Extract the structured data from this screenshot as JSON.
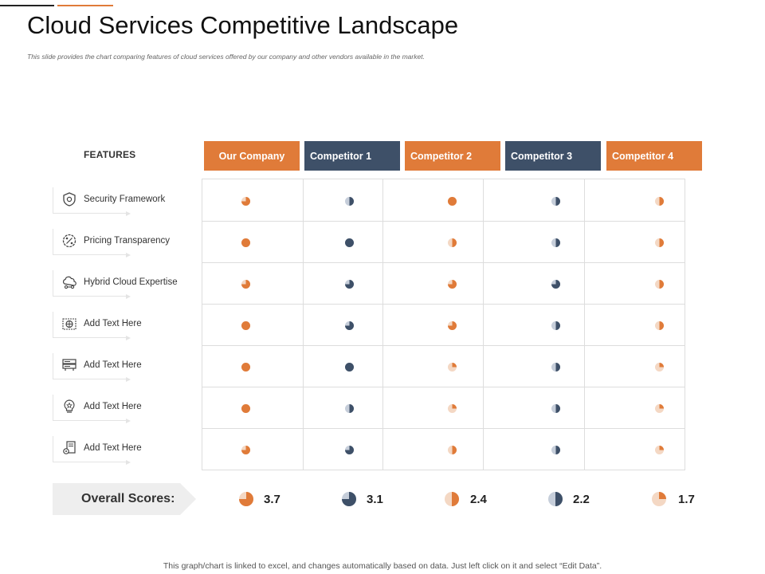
{
  "title": "Cloud Services Competitive Landscape",
  "subtitle": "This slide provides the chart comparing  features of cloud services offered by our company  and other vendors available in the market.",
  "features_header": "FEATURES",
  "colors": {
    "orange": "#E07B39",
    "navy": "#3E5068",
    "light_orange": "#F4D8C4",
    "light_navy": "#C6CEDA"
  },
  "columns": [
    {
      "label": "Our Company",
      "color": "#E07B39",
      "pie_color": "#E07B39",
      "pie_bg": "#F4D8C4"
    },
    {
      "label": "Competitor 1",
      "color": "#3E5068",
      "pie_color": "#3E5068",
      "pie_bg": "#C6CEDA"
    },
    {
      "label": "Competitor 2",
      "color": "#E07B39",
      "pie_color": "#E07B39",
      "pie_bg": "#F4D8C4"
    },
    {
      "label": "Competitor 3",
      "color": "#3E5068",
      "pie_color": "#3E5068",
      "pie_bg": "#C6CEDA"
    },
    {
      "label": "Competitor 4",
      "color": "#E07B39",
      "pie_color": "#E07B39",
      "pie_bg": "#F4D8C4"
    }
  ],
  "features": [
    {
      "label": "Security Framework",
      "icon": "shield-icon"
    },
    {
      "label": "Pricing Transparency",
      "icon": "percent-badge-icon"
    },
    {
      "label": "Hybrid Cloud Expertise",
      "icon": "cloud-network-icon"
    },
    {
      "label": "Add Text Here",
      "icon": "globe-network-icon"
    },
    {
      "label": "Add Text Here",
      "icon": "server-rack-icon"
    },
    {
      "label": "Add Text Here",
      "icon": "lightbulb-star-icon"
    },
    {
      "label": "Add Text Here",
      "icon": "document-gear-icon"
    }
  ],
  "ratings": [
    [
      0.75,
      0.5,
      1.0,
      0.5,
      0.5
    ],
    [
      1.0,
      1.0,
      0.5,
      0.5,
      0.5
    ],
    [
      0.75,
      0.75,
      0.75,
      0.75,
      0.5
    ],
    [
      1.0,
      0.75,
      0.75,
      0.5,
      0.5
    ],
    [
      1.0,
      1.0,
      0.25,
      0.5,
      0.25
    ],
    [
      1.0,
      0.5,
      0.25,
      0.5,
      0.25
    ],
    [
      0.75,
      0.75,
      0.5,
      0.5,
      0.25
    ]
  ],
  "overall_label": "Overall Scores:",
  "scores": [
    {
      "value": "3.7",
      "fill": 0.75
    },
    {
      "value": "3.1",
      "fill": 0.75
    },
    {
      "value": "2.4",
      "fill": 0.5
    },
    {
      "value": "2.2",
      "fill": 0.5
    },
    {
      "value": "1.7",
      "fill": 0.25
    }
  ],
  "footer": "This graph/chart is linked to excel, and changes automatically based on data. Just left click on it and select “Edit Data”."
}
